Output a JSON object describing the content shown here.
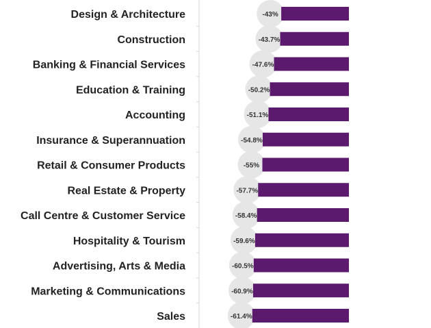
{
  "chart_data": {
    "type": "bar",
    "orientation": "horizontal",
    "title": "",
    "xlabel": "",
    "ylabel": "",
    "categories": [
      "Design & Architecture",
      "Construction",
      "Banking & Financial Services",
      "Education & Training",
      "Accounting",
      "Insurance & Superannuation",
      "Retail & Consumer Products",
      "Real Estate & Property",
      "Call Centre & Customer Service",
      "Hospitality & Tourism",
      "Advertising, Arts & Media",
      "Marketing & Communications",
      "Sales"
    ],
    "values": [
      -43,
      -43.7,
      -47.6,
      -50.2,
      -51.1,
      -54.8,
      -55,
      -57.7,
      -58.4,
      -59.6,
      -60.5,
      -60.9,
      -61.4
    ],
    "value_labels": [
      "-43%",
      "-43.7%",
      "-47.6%",
      "-50.2%",
      "-51.1%",
      "-54.8%",
      "-55%",
      "-57.7%",
      "-58.4%",
      "-59.6%",
      "-60.5%",
      "-60.9%",
      "-61.4%"
    ],
    "bar_color": "#5b1a6e",
    "label_bubble_color": "#e6e6e6",
    "grid": false
  }
}
